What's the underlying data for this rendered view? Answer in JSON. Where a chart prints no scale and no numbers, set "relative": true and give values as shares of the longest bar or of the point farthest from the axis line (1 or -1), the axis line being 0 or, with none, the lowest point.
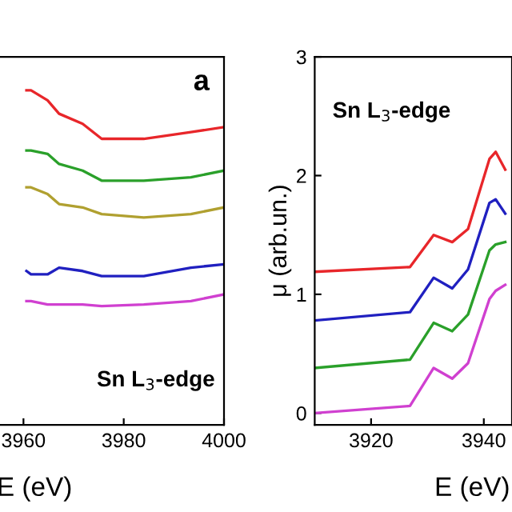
{
  "chart_data": [
    {
      "type": "line",
      "relative": true,
      "xlabel": "E (eV)",
      "xlim": [
        3955,
        4000
      ],
      "xticks": [
        3960,
        3980,
        4000
      ],
      "grid": false,
      "legend": false,
      "marker": "none",
      "line_style": "solid",
      "tick_labels": "x",
      "annotations": [
        "a",
        "Sn L$_{3}$-edge"
      ],
      "x": [
        3960.6,
        3961.5,
        3964.8,
        3967.1,
        3971.8,
        3975.6,
        3984,
        3993.4,
        4000
      ],
      "series": [
        {
          "color": "#e8262a",
          "values": [
            1.0,
            1.0,
            0.97,
            0.93,
            0.9,
            0.855,
            0.855,
            0.875,
            0.89
          ]
        },
        {
          "color": "#2aa02a",
          "values": [
            0.82,
            0.82,
            0.81,
            0.78,
            0.76,
            0.73,
            0.73,
            0.74,
            0.76
          ]
        },
        {
          "color": "#b0a030",
          "values": [
            0.71,
            0.71,
            0.69,
            0.66,
            0.65,
            0.63,
            0.62,
            0.63,
            0.65
          ]
        },
        {
          "color": "#2020c0",
          "values": [
            0.46,
            0.45,
            0.45,
            0.47,
            0.46,
            0.445,
            0.445,
            0.47,
            0.48
          ]
        },
        {
          "color": "#d040d0",
          "values": [
            0.37,
            0.37,
            0.36,
            0.36,
            0.36,
            0.355,
            0.36,
            0.37,
            0.39
          ]
        }
      ]
    },
    {
      "type": "line",
      "xlabel": "E (eV)",
      "ylabel": "μ (arb.un.)",
      "xlim": [
        3910,
        3945
      ],
      "xticks": [
        3920,
        3940
      ],
      "ylim": [
        -0.1,
        3
      ],
      "yticks": [
        0,
        1,
        2,
        3
      ],
      "grid": false,
      "legend": false,
      "marker": "none",
      "line_style": "solid",
      "annotations": [
        "Sn L$_{3}$-edge"
      ],
      "x": [
        3910,
        3926.9,
        3931.1,
        3934.4,
        3937.2,
        3941.0,
        3942.1,
        3943.8
      ],
      "series": [
        {
          "color": "#e8262a",
          "values": [
            1.19,
            1.23,
            1.5,
            1.44,
            1.55,
            2.14,
            2.2,
            2.05
          ]
        },
        {
          "color": "#2020c0",
          "values": [
            0.78,
            0.85,
            1.14,
            1.05,
            1.21,
            1.77,
            1.8,
            1.68
          ]
        },
        {
          "color": "#2aa02a",
          "values": [
            0.38,
            0.45,
            0.76,
            0.69,
            0.83,
            1.37,
            1.42,
            1.44
          ]
        },
        {
          "color": "#d040d0",
          "values": [
            0.0,
            0.06,
            0.38,
            0.29,
            0.42,
            0.96,
            1.03,
            1.08
          ]
        }
      ]
    }
  ]
}
